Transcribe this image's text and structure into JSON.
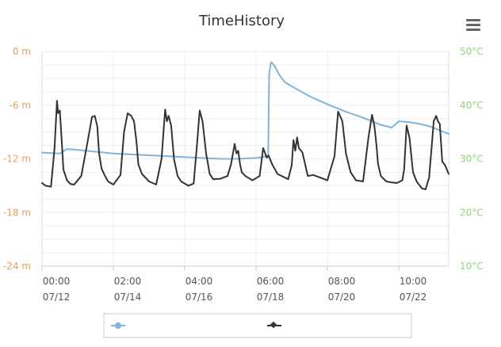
{
  "chart_data": {
    "type": "line",
    "title": "TimeHistory",
    "x_ticks": [
      {
        "time": "00:00",
        "date": "07/12"
      },
      {
        "time": "02:00",
        "date": "07/14"
      },
      {
        "time": "04:00",
        "date": "07/16"
      },
      {
        "time": "06:00",
        "date": "07/18"
      },
      {
        "time": "08:00",
        "date": "07/20"
      },
      {
        "time": "10:00",
        "date": "07/22"
      }
    ],
    "x_unit": "days since 07/12 00:00",
    "xlim": [
      0,
      11.4
    ],
    "left_axis": {
      "ticks": [
        "0 m",
        "-6 m",
        "-12 m",
        "-18 m",
        "-24 m"
      ],
      "ylim": [
        -24,
        0
      ],
      "color": "#e0a064"
    },
    "right_axis": {
      "ticks": [
        "50°C",
        "40°C",
        "30°C",
        "20°C",
        "10°C"
      ],
      "ylim": [
        10,
        50
      ],
      "color": "#8fd67a"
    },
    "grid": true,
    "legend": "bottom",
    "series": [
      {
        "axis": "left",
        "color": "#7fb3e0",
        "x": [
          0,
          0.5,
          0.7,
          1.0,
          1.5,
          2.0,
          2.5,
          3.0,
          3.5,
          4.0,
          4.5,
          5.0,
          5.5,
          6.0,
          6.2,
          6.34,
          6.37,
          6.42,
          6.5,
          6.65,
          6.8,
          7.0,
          7.5,
          8.0,
          8.5,
          9.0,
          9.5,
          9.8,
          10.0,
          10.3,
          10.6,
          10.9,
          11.2,
          11.4
        ],
        "y": [
          -11.3,
          -11.4,
          -10.9,
          -11.0,
          -11.2,
          -11.4,
          -11.5,
          -11.6,
          -11.7,
          -11.8,
          -11.9,
          -12.0,
          -12.0,
          -11.9,
          -11.8,
          -11.6,
          -2.5,
          -1.2,
          -1.5,
          -2.6,
          -3.4,
          -3.9,
          -5.0,
          -5.9,
          -6.7,
          -7.4,
          -8.2,
          -8.5,
          -7.8,
          -7.9,
          -8.1,
          -8.4,
          -8.9,
          -9.2
        ]
      },
      {
        "axis": "right",
        "color": "#333333",
        "x": [
          0,
          0.1,
          0.25,
          0.35,
          0.42,
          0.45,
          0.5,
          0.55,
          0.6,
          0.7,
          0.8,
          0.9,
          1.1,
          1.3,
          1.4,
          1.48,
          1.55,
          1.6,
          1.67,
          1.75,
          1.85,
          2.0,
          2.2,
          2.3,
          2.4,
          2.5,
          2.58,
          2.65,
          2.7,
          2.8,
          3.0,
          3.2,
          3.35,
          3.45,
          3.5,
          3.55,
          3.62,
          3.7,
          3.8,
          3.9,
          4.1,
          4.25,
          4.35,
          4.42,
          4.5,
          4.6,
          4.7,
          4.8,
          5.0,
          5.2,
          5.3,
          5.4,
          5.45,
          5.5,
          5.55,
          5.6,
          5.7,
          5.9,
          6.1,
          6.2,
          6.3,
          6.35,
          6.45,
          6.6,
          6.9,
          7.0,
          7.05,
          7.1,
          7.15,
          7.2,
          7.3,
          7.45,
          7.6,
          7.8,
          8.0,
          8.2,
          8.3,
          8.42,
          8.52,
          8.65,
          8.8,
          9.0,
          9.15,
          9.25,
          9.32,
          9.37,
          9.42,
          9.5,
          9.65,
          9.8,
          9.95,
          10.1,
          10.15,
          10.22,
          10.3,
          10.4,
          10.5,
          10.65,
          10.75,
          10.85,
          10.92,
          10.98,
          11.05,
          11.1,
          11.15,
          11.22,
          11.3,
          11.4
        ],
        "y": [
          25.5,
          25.0,
          24.8,
          32.0,
          40.8,
          38.5,
          39.0,
          33.5,
          28.0,
          26.0,
          25.3,
          25.2,
          26.8,
          34.0,
          37.8,
          38.0,
          36.0,
          31.0,
          28.2,
          27.0,
          25.8,
          25.2,
          27.0,
          35.0,
          38.5,
          38.0,
          37.0,
          33.0,
          29.0,
          27.2,
          25.8,
          25.2,
          30.0,
          39.2,
          37.0,
          38.0,
          36.2,
          30.0,
          26.8,
          25.8,
          25.0,
          25.4,
          33.0,
          39.0,
          37.0,
          31.0,
          27.2,
          26.2,
          26.3,
          26.8,
          29.0,
          32.8,
          31.0,
          31.5,
          29.0,
          27.5,
          26.8,
          26.0,
          26.8,
          32.0,
          30.2,
          30.6,
          29.0,
          27.2,
          26.2,
          28.8,
          33.5,
          31.5,
          34.0,
          32.0,
          31.2,
          26.8,
          27.0,
          26.5,
          26.0,
          30.5,
          38.8,
          37.0,
          31.0,
          27.5,
          26.0,
          25.8,
          34.0,
          38.2,
          36.0,
          33.0,
          29.0,
          26.8,
          25.8,
          25.6,
          25.5,
          26.0,
          28.0,
          36.2,
          34.0,
          27.5,
          25.8,
          24.5,
          24.3,
          26.5,
          32.0,
          37.0,
          38.0,
          37.0,
          36.5,
          29.5,
          28.8,
          27.2
        ]
      }
    ]
  },
  "menu_icon": "hamburger-menu-icon"
}
